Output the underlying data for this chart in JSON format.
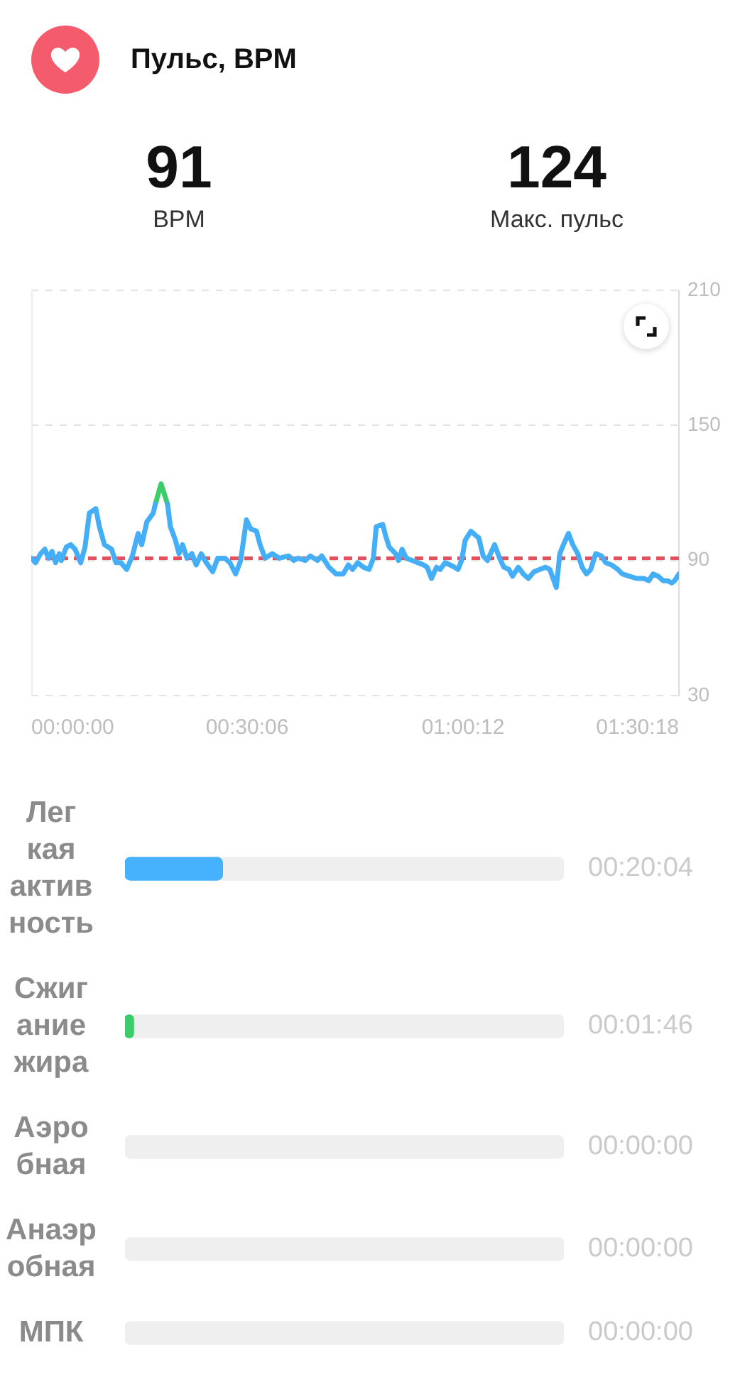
{
  "chart_data": [
    {
      "type": "other",
      "title": "Пульс, BPM",
      "annotations": [
        "91",
        "BPM",
        "124",
        "Макс. пульс"
      ]
    },
    {
      "type": "line",
      "x": [
        0,
        0.6,
        1.3,
        1.9,
        2.4,
        2.9,
        3.4,
        3.9,
        4.2,
        4.9,
        5.5,
        6.1,
        6.9,
        7.5,
        8.1,
        9.0,
        9.5,
        10.2,
        11.2,
        11.8,
        12.5,
        13.3,
        14.1,
        14.9,
        15.4,
        16.1,
        17.0,
        17.3,
        18.1,
        19.0,
        19.4,
        20.1,
        20.6,
        21.1,
        21.7,
        22.4,
        23.0,
        23.7,
        24.4,
        25.3,
        26.0,
        27.0,
        27.7,
        28.5,
        29.2,
        30.0,
        30.6,
        31.4,
        31.9,
        32.6,
        33.6,
        34.6,
        35.9,
        36.6,
        37.2,
        38.2,
        38.9,
        39.9,
        40.5,
        41.5,
        42.5,
        43.5,
        44.2,
        44.8,
        45.5,
        46.3,
        47.1,
        47.7,
        48.1,
        49.0,
        49.4,
        49.9,
        50.8,
        51.2,
        51.7,
        52.3,
        53.1,
        53.9,
        54.7,
        55.2,
        55.8,
        56.5,
        57.0,
        57.7,
        58.4,
        59.0,
        59.5,
        60.0,
        60.5,
        61.3,
        62.0,
        62.4,
        63.0,
        63.6,
        64.6,
        65.3,
        65.9,
        66.6,
        67.1,
        67.9,
        68.6,
        69.3,
        70.1,
        70.9,
        71.7,
        72.3,
        73.2,
        73.7,
        74.2,
        74.9,
        75.5,
        76.2,
        76.8,
        77.4,
        78.0,
        78.7,
        79.5,
        80.1,
        80.9,
        81.8,
        82.4,
        83.4,
        84.4,
        85.4,
        86.1,
        86.7,
        87.4,
        88.1,
        88.7,
        89.3,
        89.7,
        90.3
      ],
      "series": [
        {
          "color": "#44aef7",
          "values": [
            91,
            89,
            93,
            95,
            91,
            94,
            89,
            93,
            90,
            96,
            97,
            95,
            89,
            96,
            111,
            113,
            105,
            97,
            95,
            89,
            89,
            86,
            92,
            102,
            97,
            107,
            111,
            115,
            null,
            115,
            105,
            99,
            93,
            97,
            91,
            93,
            88,
            93,
            89,
            85,
            91,
            91,
            89,
            84,
            90,
            108,
            104,
            103,
            97,
            91,
            93,
            91,
            92,
            90,
            91,
            90,
            92,
            90,
            92,
            87,
            84,
            84,
            88,
            86,
            89,
            87,
            86,
            91,
            105,
            106,
            101,
            96,
            93,
            90,
            95,
            91,
            90,
            89,
            88,
            87,
            82,
            87,
            86,
            89,
            88,
            87,
            86,
            90,
            99,
            103,
            101,
            100,
            92,
            90,
            97,
            91,
            87,
            86,
            83,
            87,
            84,
            82,
            85,
            86,
            87,
            86,
            78,
            93,
            97,
            102,
            97,
            93,
            87,
            84,
            86,
            93,
            92,
            89,
            88,
            86,
            84,
            83,
            82,
            82,
            81,
            84,
            83,
            81,
            81,
            80,
            81,
            84
          ]
        },
        {
          "color": "#3ccd6a",
          "x": [
            17.3,
            18.1,
            19.0
          ],
          "values": [
            115,
            124,
            115
          ]
        }
      ],
      "xlim": [
        0,
        90.3
      ],
      "xticks": [
        {
          "value": 0,
          "label": "00:00:00"
        },
        {
          "value": 30.1,
          "label": "00:30:06"
        },
        {
          "value": 60.2,
          "label": "01:00:12"
        },
        {
          "value": 90.3,
          "label": "01:30:18"
        }
      ],
      "ylim": [
        30,
        210
      ],
      "yticks": [
        30,
        90,
        150,
        210
      ],
      "grid": "y",
      "marker": "none",
      "ref_lines": [
        {
          "axis": "y",
          "value": 91,
          "color": "#e5505e",
          "line_style": "dashed"
        }
      ]
    },
    {
      "type": "bar",
      "orientation": "horizontal",
      "stacked": true,
      "categories": [
        "Лег\nкая\nактив\nность",
        "Сжиг\nание\nжира",
        "Аэро\nбная",
        "Анаэр\nобная",
        "МПК"
      ],
      "series": [
        {
          "colors": [
            "#46b1fc",
            "#3ccd6a",
            null,
            null,
            null
          ],
          "values": [
            20.07,
            1.77,
            0,
            0,
            0
          ],
          "value_labels": [
            "00:20:04",
            "00:01:46",
            "00:00:00",
            "00:00:00",
            "00:00:00"
          ]
        },
        {
          "color": "#efefef",
          "values": [
            70.23,
            88.53,
            90.3,
            90.3,
            90.3
          ]
        }
      ],
      "tick_labels": "y"
    }
  ]
}
